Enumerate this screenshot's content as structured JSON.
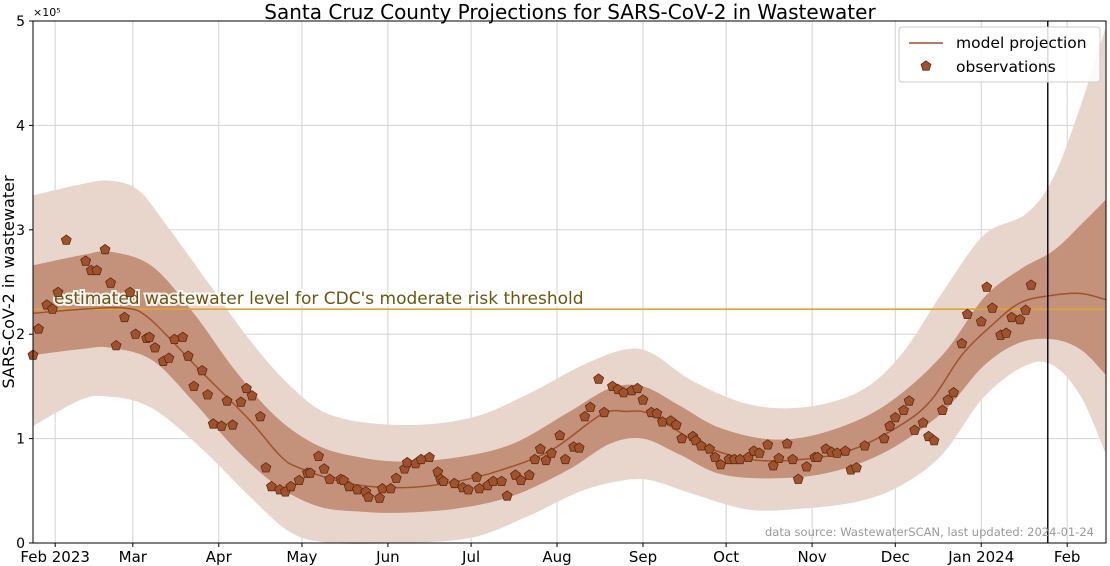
{
  "chart_data": {
    "type": "line",
    "title": "Santa Cruz County Projections for SARS-CoV-2 in Wastewater",
    "ylabel": "SARS-CoV-2 in wastewater",
    "y_multiplier_label": "×10⁵",
    "x_unit": "days since 2023-02-01",
    "xlim": [
      -8,
      379
    ],
    "ylim": [
      0,
      5
    ],
    "grid": true,
    "legend_position": "top-right",
    "x_ticks": [
      {
        "day": 0,
        "label": "Feb 2023"
      },
      {
        "day": 28,
        "label": "Mar"
      },
      {
        "day": 59,
        "label": "Apr"
      },
      {
        "day": 89,
        "label": "May"
      },
      {
        "day": 120,
        "label": "Jun"
      },
      {
        "day": 150,
        "label": "Jul"
      },
      {
        "day": 181,
        "label": "Aug"
      },
      {
        "day": 212,
        "label": "Sep"
      },
      {
        "day": 242,
        "label": "Oct"
      },
      {
        "day": 273,
        "label": "Nov"
      },
      {
        "day": 303,
        "label": "Dec"
      },
      {
        "day": 334,
        "label": "Jan 2024"
      },
      {
        "day": 365,
        "label": "Feb"
      }
    ],
    "y_ticks": [
      0,
      1,
      2,
      3,
      4,
      5
    ],
    "legend": {
      "projection": "model projection",
      "observations": "observations"
    },
    "threshold": {
      "value": 2.24,
      "label": "estimated wastewater level for CDC's moderate risk threshold",
      "color": "#d9a733",
      "text_color": "#6b5512"
    },
    "current_date_day": 358,
    "annotation": "data source: WastewaterSCAN, last updated: 2024-01-24",
    "colors": {
      "line": "#a0522d",
      "marker": "#a0522d",
      "marker_edge": "#5c2a12",
      "inner_band": "#c4917b",
      "outer_band": "#e8d6cd"
    },
    "projection": {
      "day": [
        -8,
        10,
        25,
        34,
        52,
        70,
        81,
        88,
        106,
        125,
        143,
        161,
        179,
        197,
        206,
        215,
        233,
        251,
        269,
        287,
        305,
        316,
        327,
        338,
        348,
        359,
        370,
        379
      ],
      "value": [
        2.2,
        2.24,
        2.25,
        2.15,
        1.66,
        1.18,
        0.84,
        0.72,
        0.57,
        0.53,
        0.58,
        0.7,
        0.89,
        1.23,
        1.26,
        1.23,
        0.94,
        0.8,
        0.8,
        0.89,
        1.13,
        1.37,
        1.8,
        2.09,
        2.3,
        2.37,
        2.39,
        2.33
      ]
    },
    "inner_band": {
      "day": [
        -8,
        10,
        20,
        35,
        50,
        65,
        80,
        95,
        110,
        125,
        145,
        165,
        185,
        200,
        212,
        225,
        240,
        260,
        280,
        300,
        320,
        335,
        348,
        360,
        370,
        379
      ],
      "lower": [
        1.8,
        1.86,
        1.87,
        1.75,
        1.35,
        0.9,
        0.55,
        0.35,
        0.3,
        0.29,
        0.33,
        0.45,
        0.7,
        0.95,
        1.0,
        0.85,
        0.66,
        0.62,
        0.68,
        0.88,
        1.25,
        1.7,
        1.92,
        1.95,
        1.85,
        1.61
      ],
      "upper": [
        2.66,
        2.76,
        2.79,
        2.65,
        2.2,
        1.65,
        1.2,
        0.93,
        0.82,
        0.78,
        0.82,
        0.95,
        1.25,
        1.48,
        1.5,
        1.32,
        1.1,
        0.99,
        1.08,
        1.33,
        1.8,
        2.35,
        2.62,
        2.8,
        3.05,
        3.29
      ]
    },
    "outer_band": {
      "day": [
        -8,
        10,
        20,
        30,
        40,
        55,
        70,
        85,
        100,
        125,
        150,
        170,
        190,
        205,
        215,
        230,
        250,
        270,
        290,
        305,
        320,
        335,
        350,
        360,
        370,
        379
      ],
      "lower": [
        1.12,
        1.38,
        1.4,
        1.35,
        1.2,
        0.85,
        0.45,
        0.1,
        0.0,
        0.0,
        0.05,
        0.25,
        0.5,
        0.6,
        0.6,
        0.47,
        0.32,
        0.33,
        0.4,
        0.55,
        0.85,
        1.4,
        1.7,
        1.7,
        1.4,
        0.85
      ],
      "upper": [
        3.33,
        3.44,
        3.47,
        3.38,
        3.05,
        2.5,
        1.95,
        1.5,
        1.22,
        1.13,
        1.2,
        1.42,
        1.7,
        1.85,
        1.82,
        1.55,
        1.33,
        1.3,
        1.45,
        1.8,
        2.4,
        2.95,
        3.15,
        3.5,
        4.2,
        4.95
      ]
    },
    "observations": [
      [
        -8,
        1.8
      ],
      [
        -6,
        2.05
      ],
      [
        -3,
        2.28
      ],
      [
        -1,
        2.24
      ],
      [
        1,
        2.4
      ],
      [
        4,
        2.9
      ],
      [
        11,
        2.7
      ],
      [
        13,
        2.61
      ],
      [
        15,
        2.61
      ],
      [
        18,
        2.81
      ],
      [
        20,
        2.49
      ],
      [
        22,
        1.89
      ],
      [
        25,
        2.16
      ],
      [
        27,
        2.4
      ],
      [
        29,
        2.0
      ],
      [
        33,
        1.96
      ],
      [
        34,
        1.97
      ],
      [
        36,
        1.87
      ],
      [
        39,
        1.74
      ],
      [
        41,
        1.77
      ],
      [
        43,
        1.95
      ],
      [
        46,
        1.97
      ],
      [
        48,
        1.79
      ],
      [
        50,
        1.5
      ],
      [
        53,
        1.65
      ],
      [
        55,
        1.42
      ],
      [
        57,
        1.14
      ],
      [
        60,
        1.12
      ],
      [
        62,
        1.36
      ],
      [
        64,
        1.13
      ],
      [
        67,
        1.35
      ],
      [
        69,
        1.48
      ],
      [
        71,
        1.41
      ],
      [
        74,
        1.21
      ],
      [
        76,
        0.72
      ],
      [
        78,
        0.54
      ],
      [
        81,
        0.51
      ],
      [
        83,
        0.49
      ],
      [
        85,
        0.54
      ],
      [
        88,
        0.6
      ],
      [
        91,
        0.67
      ],
      [
        92,
        0.67
      ],
      [
        95,
        0.83
      ],
      [
        97,
        0.71
      ],
      [
        99,
        0.61
      ],
      [
        103,
        0.61
      ],
      [
        104,
        0.6
      ],
      [
        106,
        0.54
      ],
      [
        109,
        0.51
      ],
      [
        112,
        0.49
      ],
      [
        113,
        0.44
      ],
      [
        117,
        0.43
      ],
      [
        118,
        0.52
      ],
      [
        121,
        0.52
      ],
      [
        123,
        0.62
      ],
      [
        126,
        0.71
      ],
      [
        127,
        0.77
      ],
      [
        130,
        0.76
      ],
      [
        132,
        0.8
      ],
      [
        135,
        0.82
      ],
      [
        138,
        0.68
      ],
      [
        139,
        0.61
      ],
      [
        140,
        0.59
      ],
      [
        144,
        0.57
      ],
      [
        147,
        0.53
      ],
      [
        149,
        0.51
      ],
      [
        152,
        0.63
      ],
      [
        153,
        0.52
      ],
      [
        156,
        0.55
      ],
      [
        158,
        0.59
      ],
      [
        161,
        0.59
      ],
      [
        163,
        0.45
      ],
      [
        166,
        0.65
      ],
      [
        168,
        0.6
      ],
      [
        171,
        0.65
      ],
      [
        173,
        0.8
      ],
      [
        175,
        0.9
      ],
      [
        177,
        0.79
      ],
      [
        179,
        0.86
      ],
      [
        182,
        1.03
      ],
      [
        184,
        0.8
      ],
      [
        187,
        0.92
      ],
      [
        189,
        0.91
      ],
      [
        191,
        1.21
      ],
      [
        193,
        1.3
      ],
      [
        196,
        1.57
      ],
      [
        198,
        1.25
      ],
      [
        201,
        1.5
      ],
      [
        203,
        1.47
      ],
      [
        205,
        1.44
      ],
      [
        208,
        1.46
      ],
      [
        210,
        1.48
      ],
      [
        212,
        1.37
      ],
      [
        215,
        1.25
      ],
      [
        217,
        1.24
      ],
      [
        219,
        1.16
      ],
      [
        222,
        1.17
      ],
      [
        224,
        1.13
      ],
      [
        226,
        1.0
      ],
      [
        230,
        1.02
      ],
      [
        231,
        0.98
      ],
      [
        233,
        0.93
      ],
      [
        236,
        0.9
      ],
      [
        238,
        0.82
      ],
      [
        240,
        0.75
      ],
      [
        243,
        0.8
      ],
      [
        245,
        0.8
      ],
      [
        247,
        0.8
      ],
      [
        250,
        0.82
      ],
      [
        252,
        0.88
      ],
      [
        254,
        0.86
      ],
      [
        257,
        0.94
      ],
      [
        259,
        0.74
      ],
      [
        261,
        0.81
      ],
      [
        264,
        0.95
      ],
      [
        266,
        0.8
      ],
      [
        268,
        0.61
      ],
      [
        271,
        0.73
      ],
      [
        274,
        0.82
      ],
      [
        275,
        0.82
      ],
      [
        278,
        0.9
      ],
      [
        280,
        0.87
      ],
      [
        282,
        0.86
      ],
      [
        285,
        0.88
      ],
      [
        287,
        0.7
      ],
      [
        289,
        0.72
      ],
      [
        292,
        0.93
      ],
      [
        299,
        1.0
      ],
      [
        301,
        1.12
      ],
      [
        303,
        1.2
      ],
      [
        306,
        1.27
      ],
      [
        308,
        1.36
      ],
      [
        310,
        1.08
      ],
      [
        313,
        1.15
      ],
      [
        315,
        1.02
      ],
      [
        317,
        0.98
      ],
      [
        320,
        1.27
      ],
      [
        322,
        1.37
      ],
      [
        324,
        1.44
      ],
      [
        327,
        1.91
      ],
      [
        329,
        2.19
      ],
      [
        334,
        2.12
      ],
      [
        336,
        2.45
      ],
      [
        338,
        2.25
      ],
      [
        341,
        1.99
      ],
      [
        343,
        2.01
      ],
      [
        345,
        2.16
      ],
      [
        348,
        2.14
      ],
      [
        350,
        2.23
      ],
      [
        352,
        2.47
      ]
    ]
  }
}
